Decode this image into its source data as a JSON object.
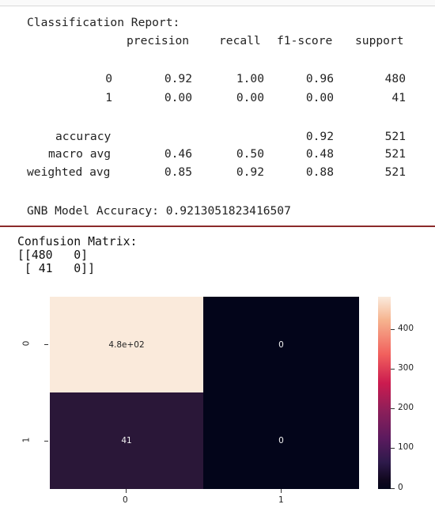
{
  "report": {
    "title": "Classification Report:",
    "headers": [
      "precision",
      "recall",
      "f1-score",
      "support"
    ],
    "rows": [
      {
        "label": "0",
        "precision": "0.92",
        "recall": "1.00",
        "f1": "0.96",
        "support": "480"
      },
      {
        "label": "1",
        "precision": "0.00",
        "recall": "0.00",
        "f1": "0.00",
        "support": "41"
      }
    ],
    "summary": [
      {
        "label": "accuracy",
        "precision": "",
        "recall": "",
        "f1": "0.92",
        "support": "521"
      },
      {
        "label": "macro avg",
        "precision": "0.46",
        "recall": "0.50",
        "f1": "0.48",
        "support": "521"
      },
      {
        "label": "weighted avg",
        "precision": "0.85",
        "recall": "0.92",
        "f1": "0.88",
        "support": "521"
      }
    ],
    "accuracy_line": "GNB Model Accuracy: 0.9213051823416507"
  },
  "confusion": {
    "title": "Confusion Matrix:",
    "matrix_line_1": "[[480   0]",
    "matrix_line_2": " [ 41   0]]"
  },
  "chart_data": {
    "type": "heatmap",
    "x_categories": [
      "0",
      "1"
    ],
    "y_categories": [
      "0",
      "1"
    ],
    "values": [
      [
        480,
        0
      ],
      [
        41,
        0
      ]
    ],
    "annotations": [
      [
        "4.8e+02",
        "0"
      ],
      [
        "41",
        "0"
      ]
    ],
    "colorbar_ticks": [
      "0",
      "100",
      "200",
      "300",
      "400"
    ],
    "colorbar_range": [
      0,
      480
    ],
    "colors": {
      "high": "#faeadb",
      "mid_41": "#2a1738",
      "zero": "#03051a"
    }
  }
}
